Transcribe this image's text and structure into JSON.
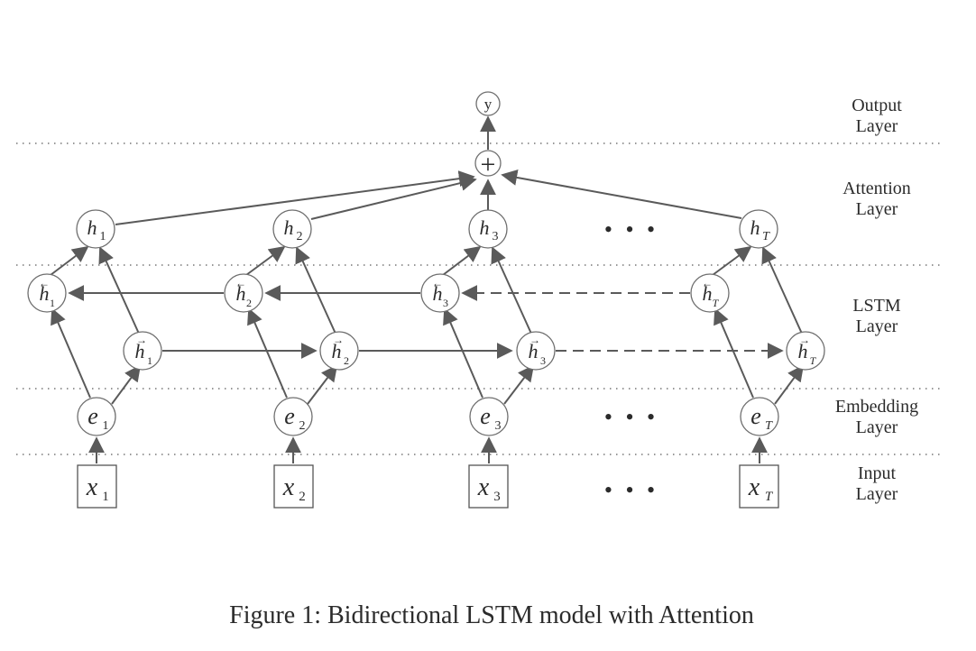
{
  "layers": [
    {
      "id": "output",
      "line1": "Output",
      "line2": "Layer"
    },
    {
      "id": "attention",
      "line1": "Attention",
      "line2": "Layer"
    },
    {
      "id": "lstm",
      "line1": "LSTM",
      "line2": "Layer"
    },
    {
      "id": "embedding",
      "line1": "Embedding",
      "line2": "Layer"
    },
    {
      "id": "input",
      "line1": "Input",
      "line2": "Layer"
    }
  ],
  "output_node": {
    "label": "y"
  },
  "combine_node": {
    "symbol": "+"
  },
  "hidden": [
    {
      "main": "h",
      "sub": "1"
    },
    {
      "main": "h",
      "sub": "2"
    },
    {
      "main": "h",
      "sub": "3"
    },
    {
      "main": "h",
      "sub": "T"
    }
  ],
  "backward": [
    {
      "main": "h",
      "sub": "1",
      "arrow": "←"
    },
    {
      "main": "h",
      "sub": "2",
      "arrow": "←"
    },
    {
      "main": "h",
      "sub": "3",
      "arrow": "←"
    },
    {
      "main": "h",
      "sub": "T",
      "arrow": "←"
    }
  ],
  "forward": [
    {
      "main": "h",
      "sub": "1",
      "arrow": "→"
    },
    {
      "main": "h",
      "sub": "2",
      "arrow": "→"
    },
    {
      "main": "h",
      "sub": "3",
      "arrow": "→"
    },
    {
      "main": "h",
      "sub": "T",
      "arrow": "→"
    }
  ],
  "embeddings": [
    {
      "main": "e",
      "sub": "1"
    },
    {
      "main": "e",
      "sub": "2"
    },
    {
      "main": "e",
      "sub": "3"
    },
    {
      "main": "e",
      "sub": "T"
    }
  ],
  "inputs": [
    {
      "main": "x",
      "sub": "1"
    },
    {
      "main": "x",
      "sub": "2"
    },
    {
      "main": "x",
      "sub": "3"
    },
    {
      "main": "x",
      "sub": "T"
    }
  ],
  "ellipsis": "• • •",
  "caption": "Figure 1: Bidirectional LSTM model with Attention"
}
